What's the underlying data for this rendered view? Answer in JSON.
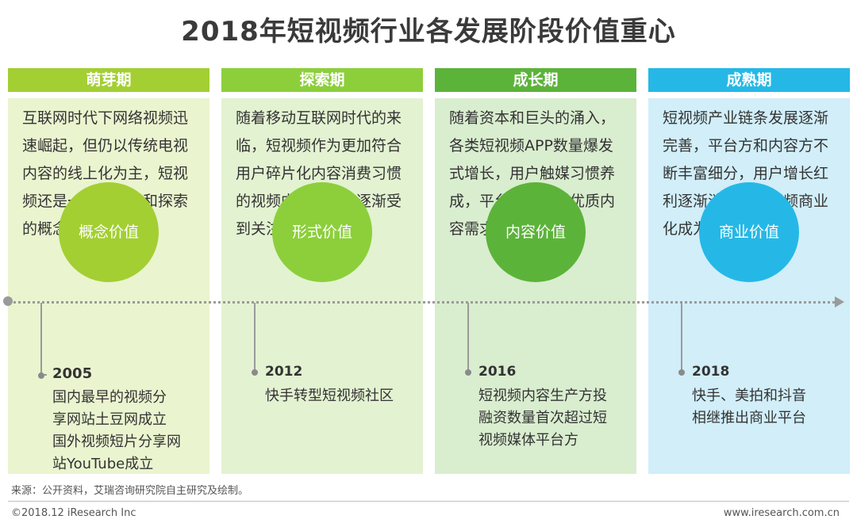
{
  "title": "2018年短视频行业各发展阶段价值重心",
  "stages": [
    {
      "name": "萌芽期",
      "description": [
        "互联网时代下网络视频迅",
        "速崛起，但仍以传统电视",
        "内容的线上化为主，短视",
        "频还是一个被畅想和探索",
        "的概念和模式"
      ],
      "value": "概念价值",
      "year": "2005",
      "milestones": [
        "国内最早的视频分",
        "享网站土豆网成立",
        "国外视频短片分享网",
        "站YouTube成立"
      ],
      "header_color": "#a3cf33",
      "panel_color": "#eaf4cf",
      "circle_color": "#a3cf33"
    },
    {
      "name": "探索期",
      "description": [
        "随着移动互联网时代的来",
        "临，短视频作为更加符合",
        "用户碎片化内容消费习惯",
        "的视频内容形式，逐渐受",
        "到关注"
      ],
      "value": "形式价值",
      "year": "2012",
      "milestones": [
        "快手转型短视频社区"
      ],
      "header_color": "#8ccf3b",
      "panel_color": "#e3f2d1",
      "circle_color": "#8ccf3b"
    },
    {
      "name": "成长期",
      "description": [
        "随着资本和巨头的涌入，",
        "各类短视频APP数量爆发",
        "式增长，用户触媒习惯养",
        "成，平台和用户对优质内",
        "容需求加大"
      ],
      "value": "内容价值",
      "year": "2016",
      "milestones": [
        "短视频内容生产方投",
        "融资数量首次超过短",
        "视频媒体平台方"
      ],
      "header_color": "#5cb33a",
      "panel_color": "#d9edcf",
      "circle_color": "#5cb33a"
    },
    {
      "name": "成熟期",
      "description": [
        "短视频产业链条发展逐渐",
        "完善，平台方和内容方不",
        "断丰富细分，用户增长红",
        "利逐渐消退，短视频商业",
        "化成为各方主要目标"
      ],
      "value": "商业价值",
      "year": "2018",
      "milestones": [
        "快手、美拍和抖音",
        "相继推出商业平台"
      ],
      "header_color": "#25b8e6",
      "panel_color": "#d1eef9",
      "circle_color": "#25b8e6"
    }
  ],
  "source": "来源：公开资料，艾瑞咨询研究院自主研究及绘制。",
  "copyright": "©2018.12 iResearch Inc",
  "website": "www.iresearch.com.cn"
}
